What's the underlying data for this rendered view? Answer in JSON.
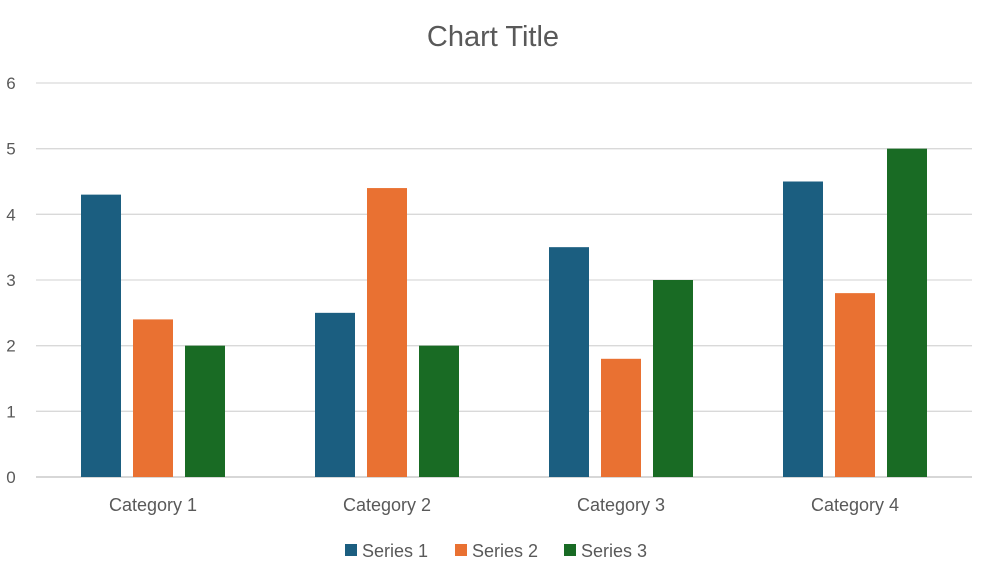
{
  "chart_data": {
    "type": "bar",
    "title": "Chart Title",
    "xlabel": "",
    "ylabel": "",
    "categories": [
      "Category 1",
      "Category 2",
      "Category 3",
      "Category 4"
    ],
    "series": [
      {
        "name": "Series 1",
        "color": "#1B5E80",
        "values": [
          4.3,
          2.5,
          3.5,
          4.5
        ]
      },
      {
        "name": "Series 2",
        "color": "#E97132",
        "values": [
          2.4,
          4.4,
          1.8,
          2.8
        ]
      },
      {
        "name": "Series 3",
        "color": "#196B24",
        "values": [
          2,
          2,
          3,
          5
        ]
      }
    ],
    "ylim": [
      0,
      6
    ],
    "yticks": [
      "0",
      "1",
      "2",
      "3",
      "4",
      "5",
      "6"
    ],
    "grid": true,
    "legend_position": "bottom"
  }
}
